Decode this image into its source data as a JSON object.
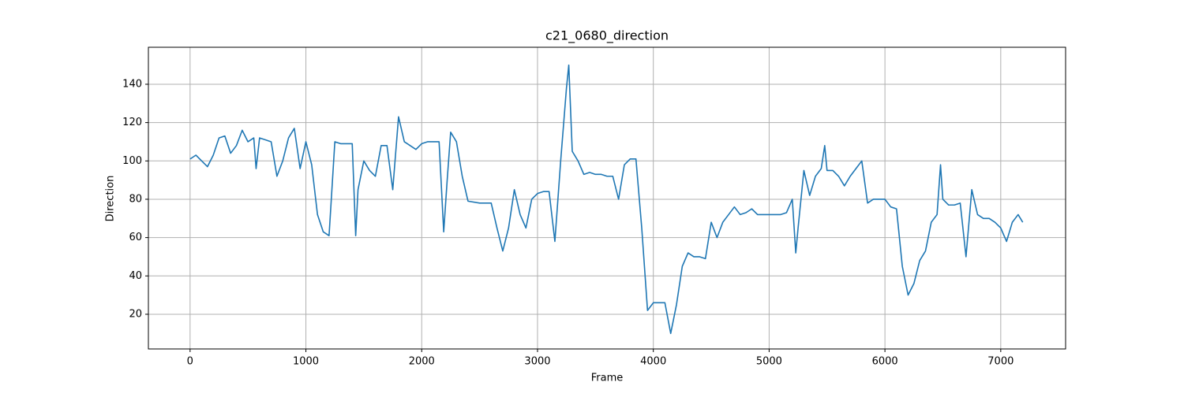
{
  "chart_data": {
    "type": "line",
    "title": "c21_0680_direction",
    "x_label": "Frame",
    "y_label": "Direction",
    "x": [
      0,
      50,
      100,
      150,
      200,
      250,
      300,
      350,
      400,
      450,
      500,
      550,
      570,
      600,
      650,
      700,
      750,
      800,
      850,
      900,
      950,
      1000,
      1050,
      1100,
      1150,
      1200,
      1250,
      1300,
      1350,
      1400,
      1430,
      1450,
      1500,
      1550,
      1600,
      1650,
      1700,
      1750,
      1800,
      1850,
      1900,
      1950,
      2000,
      2050,
      2100,
      2150,
      2190,
      2220,
      2250,
      2300,
      2350,
      2400,
      2500,
      2600,
      2650,
      2700,
      2750,
      2800,
      2850,
      2900,
      2950,
      3000,
      3050,
      3100,
      3150,
      3200,
      3250,
      3270,
      3300,
      3350,
      3400,
      3450,
      3500,
      3550,
      3600,
      3650,
      3700,
      3750,
      3800,
      3850,
      3900,
      3950,
      4000,
      4050,
      4100,
      4150,
      4200,
      4250,
      4300,
      4350,
      4400,
      4450,
      4500,
      4550,
      4600,
      4650,
      4700,
      4750,
      4800,
      4850,
      4900,
      4950,
      5000,
      5050,
      5100,
      5150,
      5200,
      5230,
      5250,
      5300,
      5350,
      5400,
      5450,
      5480,
      5500,
      5550,
      5600,
      5650,
      5700,
      5750,
      5800,
      5850,
      5900,
      5950,
      6000,
      6050,
      6100,
      6150,
      6200,
      6250,
      6300,
      6350,
      6400,
      6450,
      6480,
      6500,
      6550,
      6600,
      6650,
      6700,
      6750,
      6800,
      6850,
      6900,
      6950,
      7000,
      7050,
      7100,
      7150,
      7190
    ],
    "series": [
      {
        "name": "direction",
        "color": "#1f77b4",
        "values": [
          101,
          103,
          100,
          97,
          103,
          112,
          113,
          104,
          108,
          116,
          110,
          112,
          96,
          112,
          111,
          110,
          92,
          100,
          112,
          117,
          96,
          110,
          98,
          72,
          63,
          61,
          110,
          109,
          109,
          109,
          61,
          85,
          100,
          95,
          92,
          108,
          108,
          85,
          123,
          110,
          108,
          106,
          109,
          110,
          110,
          110,
          63,
          90,
          115,
          110,
          92,
          79,
          78,
          78,
          65,
          53,
          65,
          85,
          72,
          65,
          80,
          83,
          84,
          84,
          58,
          100,
          138,
          150,
          105,
          100,
          93,
          94,
          93,
          93,
          92,
          92,
          80,
          98,
          101,
          101,
          65,
          22,
          26,
          26,
          26,
          10,
          25,
          45,
          52,
          50,
          50,
          49,
          68,
          60,
          68,
          72,
          76,
          72,
          73,
          75,
          72,
          72,
          72,
          72,
          72,
          73,
          80,
          52,
          65,
          95,
          82,
          92,
          96,
          108,
          95,
          95,
          92,
          87,
          92,
          96,
          100,
          78,
          80,
          80,
          80,
          76,
          75,
          45,
          30,
          36,
          48,
          53,
          68,
          72,
          98,
          80,
          77,
          77,
          78,
          50,
          85,
          72,
          70,
          70,
          68,
          65,
          58,
          68,
          72,
          68
        ]
      }
    ],
    "xlim": [
      -360,
      7560
    ],
    "ylim": [
      1.9,
      159.3
    ],
    "xticks": [
      0,
      1000,
      2000,
      3000,
      4000,
      5000,
      6000,
      7000
    ],
    "yticks": [
      20,
      40,
      60,
      80,
      100,
      120,
      140
    ],
    "grid": true
  }
}
